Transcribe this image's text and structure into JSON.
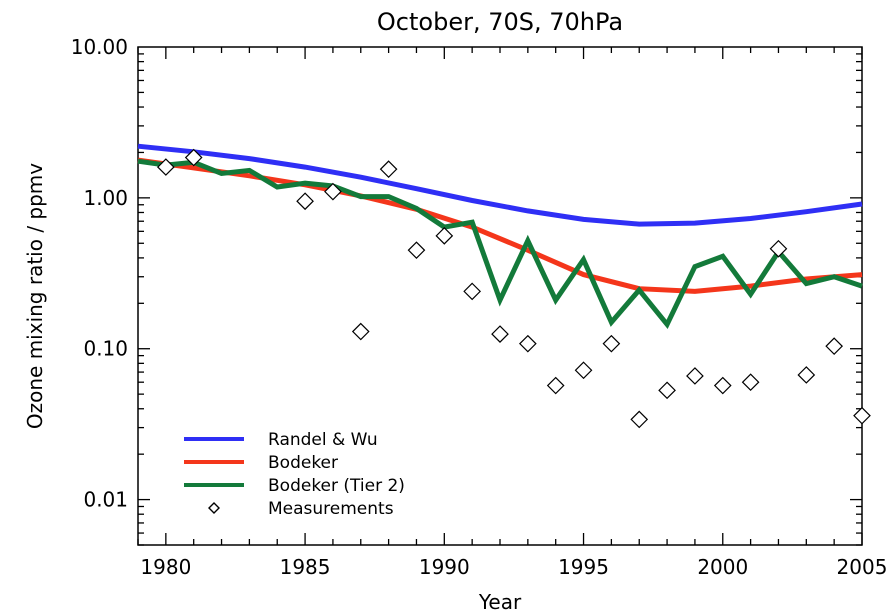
{
  "chart_data": {
    "type": "line",
    "title": "October, 70S, 70hPa",
    "xlabel": "Year",
    "ylabel": "Ozone mixing ratio / ppmv",
    "y_scale": "log",
    "xlim": [
      1979,
      2005
    ],
    "ylim": [
      0.005,
      10
    ],
    "x_ticks": [
      1980,
      1985,
      1990,
      1995,
      2000,
      2005
    ],
    "x_tick_labels": [
      "1980",
      "1985",
      "1990",
      "1995",
      "2000",
      "2005"
    ],
    "y_ticks": [
      0.01,
      0.1,
      1,
      10
    ],
    "y_tick_labels": [
      "0.01",
      "0.10",
      "1.00",
      "10.00"
    ],
    "legend_position": "bottom-left",
    "series": [
      {
        "name": "Randel & Wu",
        "color": "#2f2ff5",
        "style": "line",
        "x": [
          1979,
          1981,
          1983,
          1985,
          1987,
          1989,
          1991,
          1993,
          1995,
          1997,
          1999,
          2001,
          2003,
          2005
        ],
        "values": [
          2.2,
          2.02,
          1.82,
          1.6,
          1.37,
          1.15,
          0.96,
          0.82,
          0.72,
          0.67,
          0.68,
          0.73,
          0.81,
          0.91
        ]
      },
      {
        "name": "Bodeker",
        "color": "#f4361b",
        "style": "line",
        "x": [
          1979,
          1981,
          1983,
          1985,
          1987,
          1989,
          1991,
          1993,
          1995,
          1997,
          1999,
          2001,
          2003,
          2005
        ],
        "values": [
          1.78,
          1.58,
          1.4,
          1.22,
          1.03,
          0.84,
          0.64,
          0.45,
          0.31,
          0.25,
          0.24,
          0.26,
          0.29,
          0.31
        ]
      },
      {
        "name": "Bodeker (Tier 2)",
        "color": "#137a3a",
        "style": "line",
        "x": [
          1979,
          1980,
          1981,
          1982,
          1983,
          1984,
          1985,
          1986,
          1987,
          1988,
          1989,
          1990,
          1991,
          1992,
          1993,
          1994,
          1995,
          1996,
          1997,
          1998,
          1999,
          2000,
          2001,
          2002,
          2003,
          2004,
          2005
        ],
        "values": [
          1.75,
          1.65,
          1.72,
          1.45,
          1.52,
          1.18,
          1.25,
          1.2,
          1.02,
          1.02,
          0.85,
          0.64,
          0.69,
          0.21,
          0.52,
          0.21,
          0.39,
          0.15,
          0.245,
          0.145,
          0.35,
          0.41,
          0.23,
          0.44,
          0.27,
          0.3,
          0.26
        ]
      },
      {
        "name": "Measurements",
        "color": "#000000",
        "style": "markers",
        "marker": "diamond",
        "x": [
          1980,
          1981,
          1985,
          1986,
          1987,
          1988,
          1989,
          1990,
          1991,
          1992,
          1993,
          1994,
          1995,
          1996,
          1997,
          1998,
          1999,
          2000,
          2001,
          2002,
          2003,
          2004,
          2005
        ],
        "values": [
          1.6,
          1.85,
          0.95,
          1.1,
          0.13,
          1.55,
          0.45,
          0.56,
          0.24,
          0.125,
          0.108,
          0.057,
          0.072,
          0.108,
          0.034,
          0.053,
          0.066,
          0.057,
          0.06,
          0.46,
          0.067,
          0.104,
          0.036
        ]
      }
    ]
  }
}
